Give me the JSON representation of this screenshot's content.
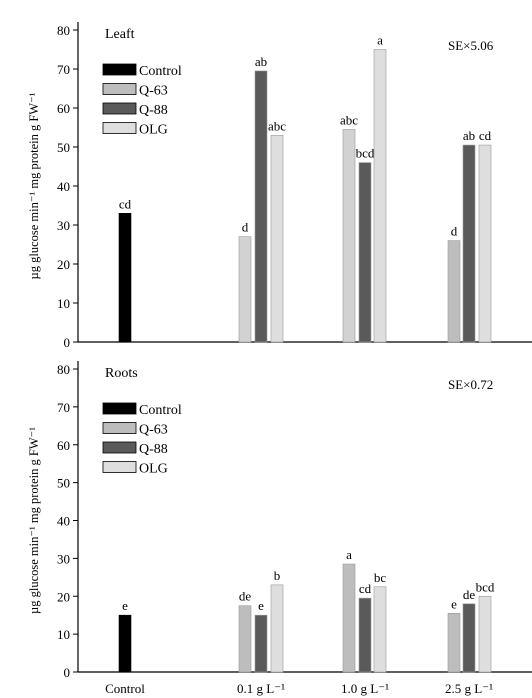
{
  "chart_data": [
    {
      "type": "bar",
      "panel_label": "Leaft",
      "se_label": "SE×5.06",
      "ylabel": "µg glucose min⁻¹ mg protein g FW⁻¹",
      "ylim": [
        0,
        80
      ],
      "yticks": [
        0,
        10,
        20,
        30,
        40,
        50,
        60,
        70,
        80
      ],
      "legend_position": "top-left",
      "legend": [
        "Control",
        "Q-63",
        "Q-88",
        "OLG"
      ],
      "colors": {
        "Control": "#000000",
        "Q-63": "#bdbdbd",
        "Q-88": "#5a5a5a",
        "OLG": "#dedede"
      },
      "bars": [
        {
          "category": "Control",
          "series": "Control",
          "value": 33,
          "label": "cd"
        },
        {
          "category": "0.1 g L⁻¹",
          "series": "Q-63",
          "value": 27,
          "label": "d",
          "color": "#d2d2d2"
        },
        {
          "category": "0.1 g L⁻¹",
          "series": "Q-88",
          "value": 69.5,
          "label": "ab"
        },
        {
          "category": "0.1 g L⁻¹",
          "series": "OLG",
          "value": 53,
          "label": "abc"
        },
        {
          "category": "1.0 g L⁻¹",
          "series": "Q-63",
          "value": 54.5,
          "label": "abc",
          "color": "#d2d2d2"
        },
        {
          "category": "1.0 g L⁻¹",
          "series": "Q-88",
          "value": 46,
          "label": "bcd"
        },
        {
          "category": "1.0 g L⁻¹",
          "series": "OLG",
          "value": 75,
          "label": "a"
        },
        {
          "category": "2.5 g L⁻¹",
          "series": "Q-63",
          "value": 26,
          "label": "d"
        },
        {
          "category": "2.5 g L⁻¹",
          "series": "Q-88",
          "value": 50.5,
          "label": "ab"
        },
        {
          "category": "2.5 g L⁻¹",
          "series": "OLG",
          "value": 50.5,
          "label": "cd"
        }
      ]
    },
    {
      "type": "bar",
      "panel_label": "Roots",
      "se_label": "SE×0.72",
      "ylabel": "µg glucose min⁻¹ mg protein g FW⁻¹",
      "ylim": [
        0,
        80
      ],
      "yticks": [
        0,
        10,
        20,
        30,
        40,
        50,
        60,
        70,
        80
      ],
      "legend_position": "top-left",
      "legend": [
        "Control",
        "Q-63",
        "Q-88",
        "OLG"
      ],
      "colors": {
        "Control": "#000000",
        "Q-63": "#bdbdbd",
        "Q-88": "#5a5a5a",
        "OLG": "#dedede"
      },
      "categories": [
        "Control",
        "0.1 g L⁻¹",
        "1.0 g L⁻¹",
        "2.5 g L⁻¹"
      ],
      "bars": [
        {
          "category": "Control",
          "series": "Control",
          "value": 15,
          "label": "e"
        },
        {
          "category": "0.1 g L⁻¹",
          "series": "Q-63",
          "value": 17.5,
          "label": "de"
        },
        {
          "category": "0.1 g L⁻¹",
          "series": "Q-88",
          "value": 15,
          "label": "e"
        },
        {
          "category": "0.1 g L⁻¹",
          "series": "OLG",
          "value": 23,
          "label": "b"
        },
        {
          "category": "1.0 g L⁻¹",
          "series": "Q-63",
          "value": 28.5,
          "label": "a"
        },
        {
          "category": "1.0 g L⁻¹",
          "series": "Q-88",
          "value": 19.5,
          "label": "cd"
        },
        {
          "category": "1.0 g L⁻¹",
          "series": "OLG",
          "value": 22.5,
          "label": "bc"
        },
        {
          "category": "2.5 g L⁻¹",
          "series": "Q-63",
          "value": 15.5,
          "label": "e"
        },
        {
          "category": "2.5 g L⁻¹",
          "series": "Q-88",
          "value": 18,
          "label": "de"
        },
        {
          "category": "2.5 g L⁻¹",
          "series": "OLG",
          "value": 20,
          "label": "bcd"
        }
      ]
    }
  ]
}
